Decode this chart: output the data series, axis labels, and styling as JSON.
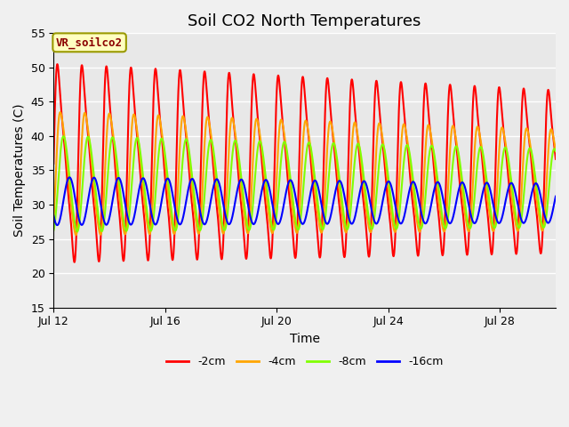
{
  "title": "Soil CO2 North Temperatures",
  "xlabel": "Time",
  "ylabel": "Soil Temperatures (C)",
  "xlim_days": [
    0,
    18
  ],
  "ylim": [
    15,
    55
  ],
  "yticks": [
    15,
    20,
    25,
    30,
    35,
    40,
    45,
    50,
    55
  ],
  "xtick_positions": [
    0,
    4,
    8,
    12,
    16
  ],
  "xtick_labels": [
    "Jul 12",
    "Jul 16",
    "Jul 20",
    "Jul 24",
    "Jul 28"
  ],
  "annotation_text": "VR_soilco2",
  "axes_facecolor": "#e8e8e8",
  "fig_facecolor": "#f0f0f0",
  "lines": [
    {
      "label": "-2cm",
      "color": "#ff0000",
      "amplitude": 14.5,
      "mean": 36.0,
      "phase": 0.0,
      "period": 0.88,
      "phase_lag": 0.0,
      "amp_mod": 0.12,
      "mean_slope": -0.4
    },
    {
      "label": "-4cm",
      "color": "#ffa500",
      "amplitude": 9.0,
      "mean": 34.5,
      "phase": 0.08,
      "period": 0.88,
      "phase_lag": 0.08,
      "amp_mod": 0.08,
      "mean_slope": -0.3
    },
    {
      "label": "-8cm",
      "color": "#80ff00",
      "amplitude": 7.0,
      "mean": 33.0,
      "phase": 0.16,
      "period": 0.88,
      "phase_lag": 0.16,
      "amp_mod": 0.06,
      "mean_slope": -0.2
    },
    {
      "label": "-16cm",
      "color": "#0000ff",
      "amplitude": 3.5,
      "mean": 30.5,
      "phase": 0.35,
      "period": 0.88,
      "phase_lag": 0.35,
      "amp_mod": 0.02,
      "mean_slope": -0.1
    }
  ],
  "legend_colors": [
    "#ff0000",
    "#ffa500",
    "#80ff00",
    "#0000ff"
  ],
  "legend_labels": [
    "-2cm",
    "-4cm",
    "-8cm",
    "-16cm"
  ],
  "title_fontsize": 13,
  "label_fontsize": 10,
  "tick_fontsize": 9,
  "figwidth": 6.4,
  "figheight": 4.8
}
